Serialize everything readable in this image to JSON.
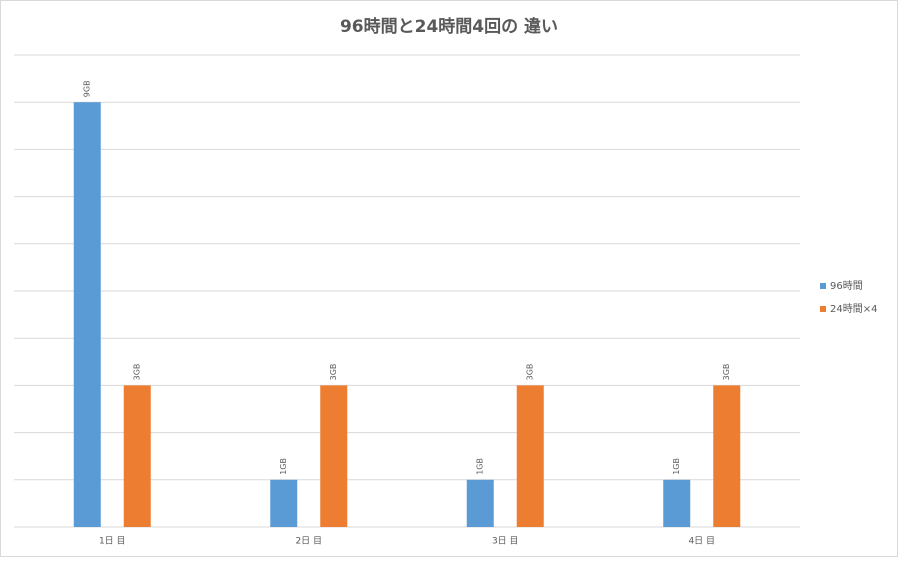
{
  "chart_data": {
    "type": "bar",
    "title": "96時間と24時間4回の 違い",
    "categories": [
      "1日 目",
      "2日 目",
      "3日 目",
      "4日 目"
    ],
    "series": [
      {
        "name": "96時間",
        "color": "#5b9bd5",
        "values": [
          9,
          1,
          1,
          1
        ],
        "value_labels": [
          "9GB",
          "1GB",
          "1GB",
          "1GB"
        ]
      },
      {
        "name": "24時間×4",
        "color": "#ed7d31",
        "values": [
          3,
          3,
          3,
          3
        ],
        "value_labels": [
          "3GB",
          "3GB",
          "3GB",
          "3GB"
        ]
      }
    ],
    "ylim": [
      0,
      10
    ],
    "yticks": [
      0,
      1,
      2,
      3,
      4,
      5,
      6,
      7,
      8,
      9,
      10
    ],
    "grid": true,
    "legend": "right"
  }
}
